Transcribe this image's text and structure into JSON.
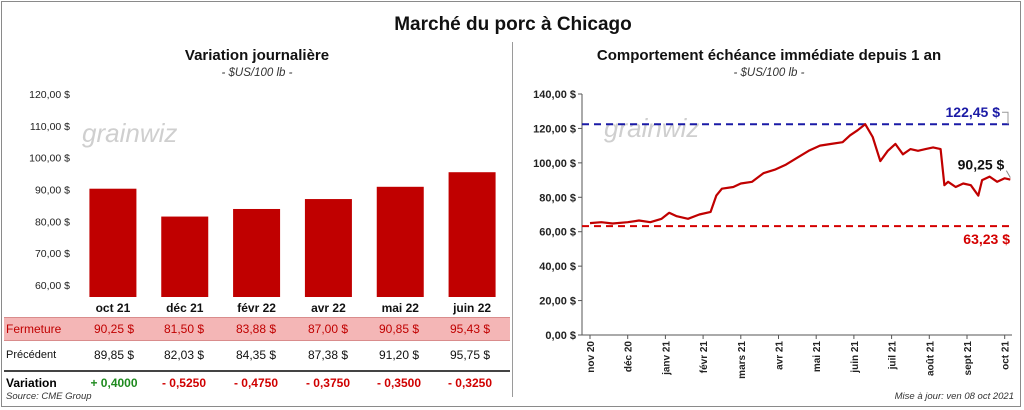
{
  "title": "Marché du porc à Chicago",
  "left": {
    "subtitle": "Variation journalière",
    "unit": "- $US/100 lb -",
    "watermark": "grainwiz",
    "chart_data": {
      "type": "bar",
      "categories": [
        "oct 21",
        "déc 21",
        "févr 22",
        "avr 22",
        "mai 22",
        "juin 22"
      ],
      "values": [
        90.25,
        81.5,
        83.88,
        87.0,
        90.85,
        95.43
      ],
      "ylim": [
        60,
        120
      ],
      "yticks": [
        "60,00 $",
        "70,00 $",
        "80,00 $",
        "90,00 $",
        "100,00 $",
        "110,00 $",
        "120,00 $"
      ],
      "bar_color": "#c00000"
    },
    "table": {
      "close_label": "Fermeture",
      "close": [
        "90,25  $",
        "81,50  $",
        "83,88  $",
        "87,00  $",
        "90,85  $",
        "95,43  $"
      ],
      "prev_label": "Précédent",
      "prev": [
        "89,85  $",
        "82,03  $",
        "84,35  $",
        "87,38  $",
        "91,20  $",
        "95,75  $"
      ],
      "var_label": "Variation",
      "var": [
        "+ 0,4000",
        "- 0,5250",
        "- 0,4750",
        "- 0,3750",
        "- 0,3500",
        "- 0,3250"
      ]
    },
    "source": "Source: CME Group"
  },
  "right": {
    "subtitle": "Comportement  échéance immédiate depuis 1 an",
    "unit": "- $US/100 lb -",
    "watermark": "grainwiz",
    "chart_data": {
      "type": "line",
      "x_labels": [
        "nov 20",
        "déc 20",
        "janv 21",
        "févr 21",
        "mars 21",
        "avr 21",
        "mai 21",
        "juin 21",
        "juil 21",
        "août 21",
        "sept 21",
        "oct 21"
      ],
      "ylim": [
        0,
        140
      ],
      "yticks": [
        "0,00 $",
        "20,00 $",
        "40,00 $",
        "60,00 $",
        "80,00 $",
        "100,00 $",
        "120,00 $",
        "140,00 $"
      ],
      "series_points": [
        [
          0,
          65
        ],
        [
          0.3,
          65.5
        ],
        [
          0.6,
          64.8
        ],
        [
          1.0,
          65.5
        ],
        [
          1.3,
          66.5
        ],
        [
          1.6,
          65.5
        ],
        [
          1.9,
          67.5
        ],
        [
          2.1,
          71
        ],
        [
          2.3,
          69
        ],
        [
          2.6,
          67.5
        ],
        [
          2.9,
          70
        ],
        [
          3.2,
          71.5
        ],
        [
          3.35,
          81
        ],
        [
          3.5,
          85
        ],
        [
          3.8,
          86
        ],
        [
          4.0,
          88
        ],
        [
          4.3,
          89
        ],
        [
          4.6,
          94
        ],
        [
          4.9,
          96
        ],
        [
          5.2,
          99
        ],
        [
          5.5,
          103
        ],
        [
          5.8,
          107
        ],
        [
          6.1,
          110
        ],
        [
          6.4,
          111
        ],
        [
          6.7,
          112
        ],
        [
          6.9,
          116
        ],
        [
          7.1,
          119
        ],
        [
          7.3,
          122.45
        ],
        [
          7.5,
          115
        ],
        [
          7.6,
          108
        ],
        [
          7.7,
          101
        ],
        [
          7.9,
          107
        ],
        [
          8.1,
          111
        ],
        [
          8.3,
          105
        ],
        [
          8.5,
          108
        ],
        [
          8.7,
          107
        ],
        [
          8.9,
          108
        ],
        [
          9.1,
          109
        ],
        [
          9.3,
          108
        ],
        [
          9.4,
          87
        ],
        [
          9.5,
          89
        ],
        [
          9.7,
          86
        ],
        [
          9.9,
          88
        ],
        [
          10.1,
          87
        ],
        [
          10.3,
          81
        ],
        [
          10.4,
          90
        ],
        [
          10.6,
          92
        ],
        [
          10.8,
          89
        ],
        [
          11.0,
          91
        ],
        [
          11.15,
          90.25
        ]
      ],
      "max_label": "122,45 $",
      "max_value": 122.45,
      "min_label": "63,23 $",
      "min_value": 63.23,
      "last_label": "90,25 $",
      "line_color": "#c00000",
      "max_color": "#1a1aa6",
      "min_color": "#d40000"
    },
    "updated": "Mise à jour: ven 08 oct 2021"
  }
}
